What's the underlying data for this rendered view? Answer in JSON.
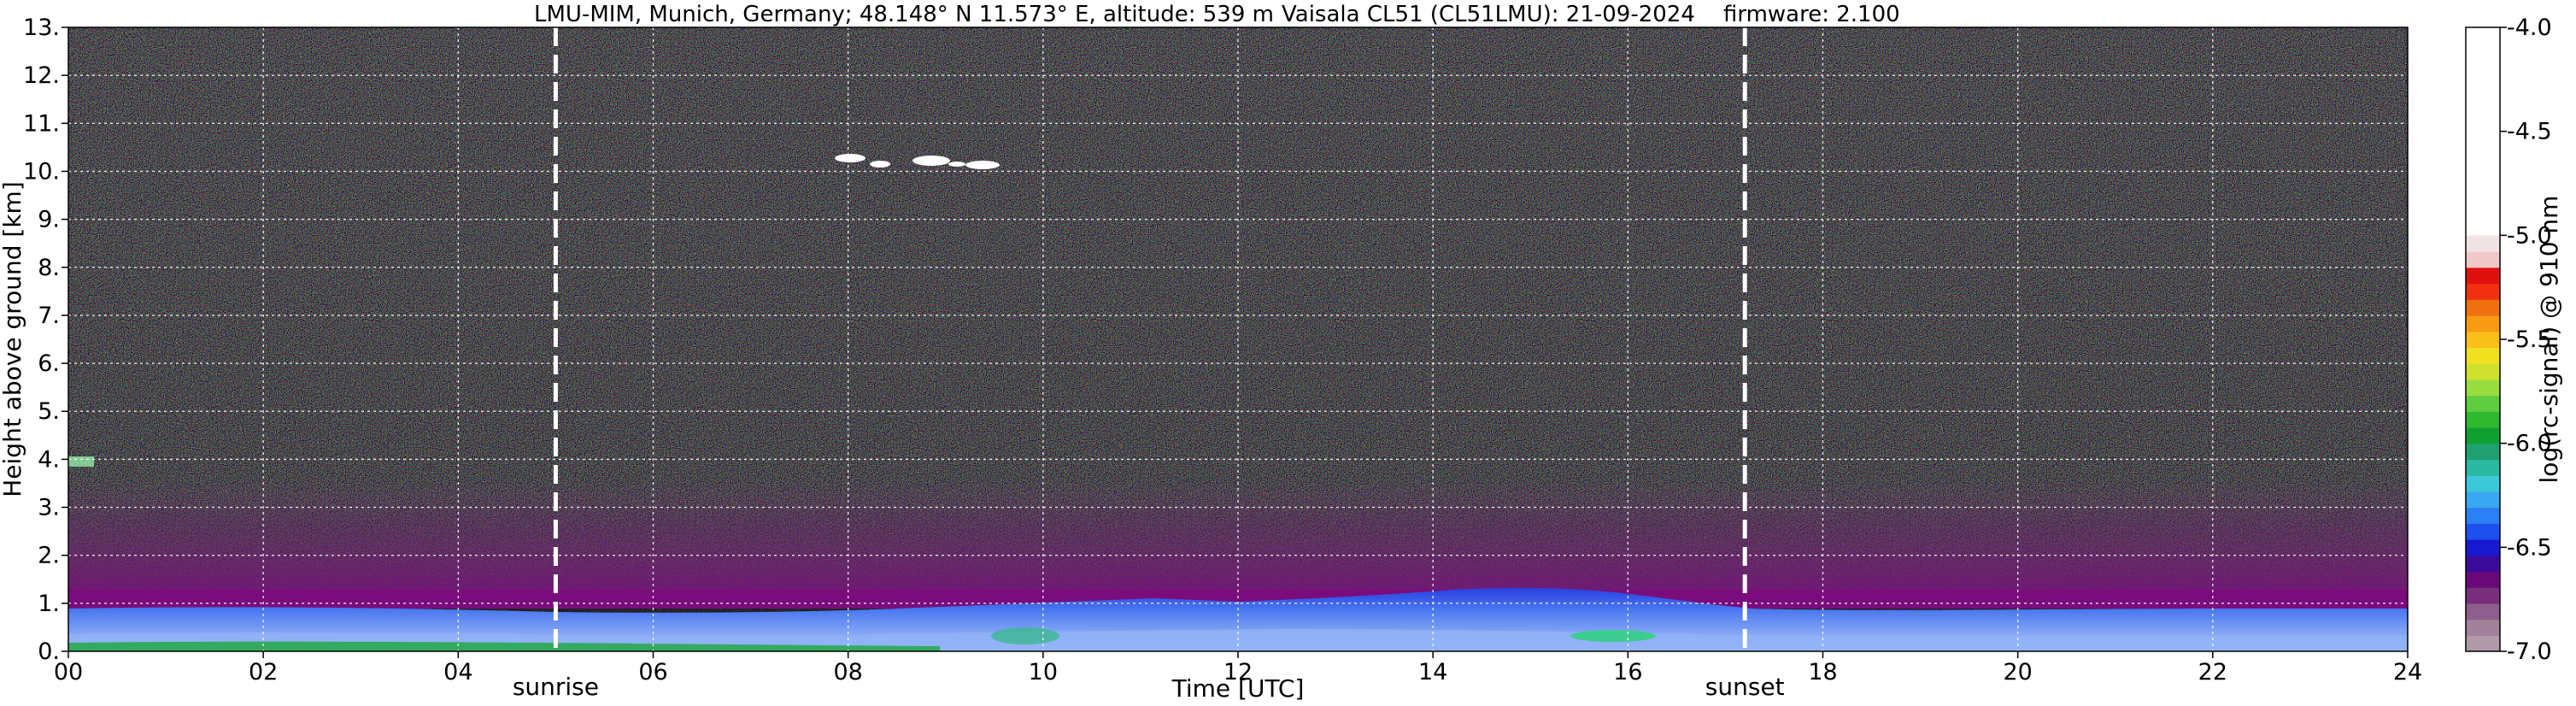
{
  "header": {
    "title_left": "LMU-MIM, Munich, Germany; 48.148° N 11.573° E, altitude: 539 m",
    "title_right": "Vaisala CL51 (CL51LMU): 21-09-2024    firmware: 2.100"
  },
  "chart_data": {
    "type": "heatmap",
    "xlabel": "Time [UTC]",
    "ylabel": "Height above ground [km]",
    "xlim": [
      0,
      24
    ],
    "ylim": [
      0,
      13
    ],
    "x_ticks": [
      "00",
      "02",
      "04",
      "06",
      "08",
      "10",
      "12",
      "14",
      "16",
      "18",
      "20",
      "22",
      "24"
    ],
    "y_ticks": [
      "0.",
      "1.",
      "2.",
      "3.",
      "4.",
      "5.",
      "6.",
      "7.",
      "8.",
      "9.",
      "10.",
      "11.",
      "12.",
      "13."
    ],
    "grid": true,
    "colorbar": {
      "label": "log(rc-signal) @ 910 nm",
      "range": [
        -7.0,
        -4.0
      ],
      "ticks": [
        "-4.0",
        "-4.5",
        "-5.0",
        "-5.5",
        "-6.0",
        "-6.5",
        "-7.0"
      ],
      "colors": [
        "#b09aa8",
        "#a0829a",
        "#8e5e8c",
        "#7a2f7e",
        "#6a0a78",
        "#3a0a9a",
        "#1818d0",
        "#1e50ee",
        "#2a80f4",
        "#3aa8f0",
        "#3cc8d8",
        "#2ab8a0",
        "#20a070",
        "#10a030",
        "#30b830",
        "#60cc40",
        "#98dc40",
        "#d0e030",
        "#f0e020",
        "#f8c018",
        "#f89a14",
        "#f07010",
        "#f03010",
        "#e01010",
        "#f0c8c8",
        "#f0e4e4",
        "#ffffff"
      ]
    },
    "annotations": [
      {
        "text": "sunrise",
        "x": 5.0
      },
      {
        "text": "sunset",
        "x": 17.2
      }
    ],
    "layers": [
      {
        "name": "surface layer",
        "base_km": 0.0,
        "top_km": 0.25
      },
      {
        "name": "boundary layer (night)",
        "base_km": 0.0,
        "top_km": 0.7
      },
      {
        "name": "boundary layer (day max)",
        "top_km": 1.15,
        "time_of_max": 14.5
      },
      {
        "name": "cirrus cloud",
        "x_start": 7.8,
        "x_end": 9.6,
        "height_km": 10.2
      },
      {
        "name": "residual aerosol",
        "x_start": 0.0,
        "x_end": 0.3,
        "height_km": 3.9
      }
    ]
  }
}
